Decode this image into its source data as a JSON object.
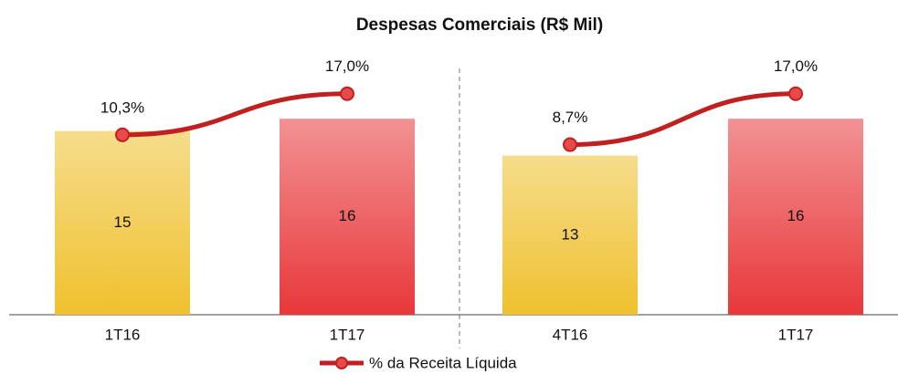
{
  "chart_data": {
    "type": "bar",
    "title": "Despesas Comerciais (R$ Mil)",
    "categories": [
      "1T16",
      "1T17",
      "4T16",
      "1T17"
    ],
    "series": [
      {
        "name": null,
        "type": "bar",
        "colors": [
          "#efc12e",
          "#e8383a",
          "#efc12e",
          "#e8383a"
        ],
        "values": [
          15,
          16,
          13,
          16
        ]
      },
      {
        "name": "% da Receita Líquida",
        "type": "line",
        "color": "#c0201f",
        "values": [
          10.3,
          17.0,
          8.7,
          17.0
        ],
        "value_labels": [
          "10,3%",
          "17,0%",
          "8,7%",
          "17,0%"
        ]
      }
    ]
  }
}
